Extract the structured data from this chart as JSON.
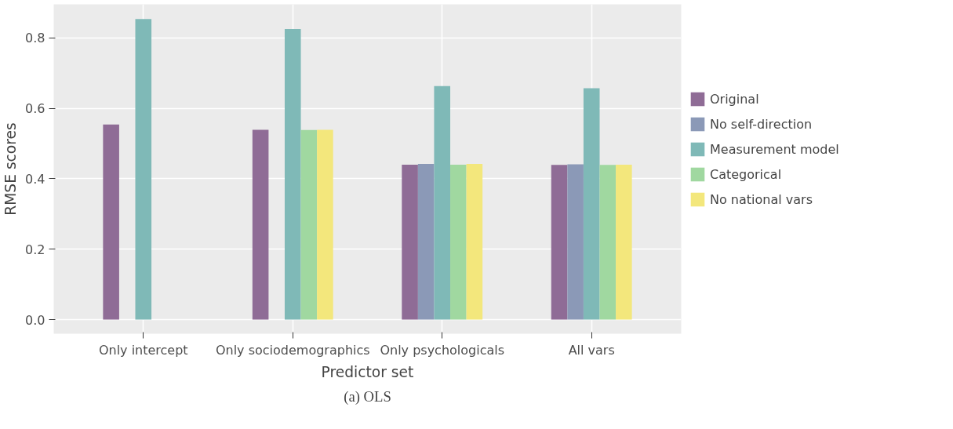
{
  "chart_data": {
    "type": "bar",
    "xlabel": "Predictor set",
    "ylabel": "RMSE scores",
    "categories": [
      "Only intercept",
      "Only sociodemographics",
      "Only psychologicals",
      "All vars"
    ],
    "series": [
      {
        "name": "Original",
        "color": "#8f6c96",
        "values": [
          0.554,
          0.539,
          0.44,
          0.439
        ]
      },
      {
        "name": "No self-direction",
        "color": "#8b99b7",
        "values": [
          null,
          null,
          0.442,
          0.441
        ]
      },
      {
        "name": "Measurement model",
        "color": "#7fb9b7",
        "values": [
          0.853,
          0.825,
          0.663,
          0.657
        ]
      },
      {
        "name": "Categorical",
        "color": "#a0d8a0",
        "values": [
          null,
          0.538,
          0.44,
          0.439
        ]
      },
      {
        "name": "No national vars",
        "color": "#f3e77c",
        "values": [
          null,
          0.539,
          0.442,
          0.44
        ]
      }
    ],
    "ylim": [
      -0.04,
      0.895
    ],
    "yticks": [
      {
        "value": 0,
        "label": "0.0"
      },
      0.2,
      0.4,
      0.6,
      0.8
    ],
    "grid": true,
    "legend": "right",
    "annotations": [
      "(a) OLS"
    ]
  }
}
